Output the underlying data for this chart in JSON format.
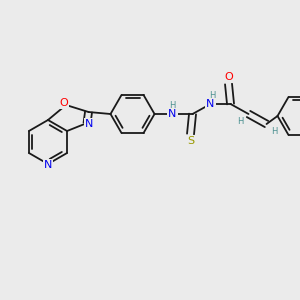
{
  "bg_color": "#ebebeb",
  "bond_color": "#1a1a1a",
  "atom_colors": {
    "O": "#ff0000",
    "N": "#0000ee",
    "S": "#999900",
    "H": "#4a9090",
    "C": "#1a1a1a"
  },
  "font_size": 7.0,
  "fig_width": 3.0,
  "fig_height": 3.0,
  "dpi": 100
}
